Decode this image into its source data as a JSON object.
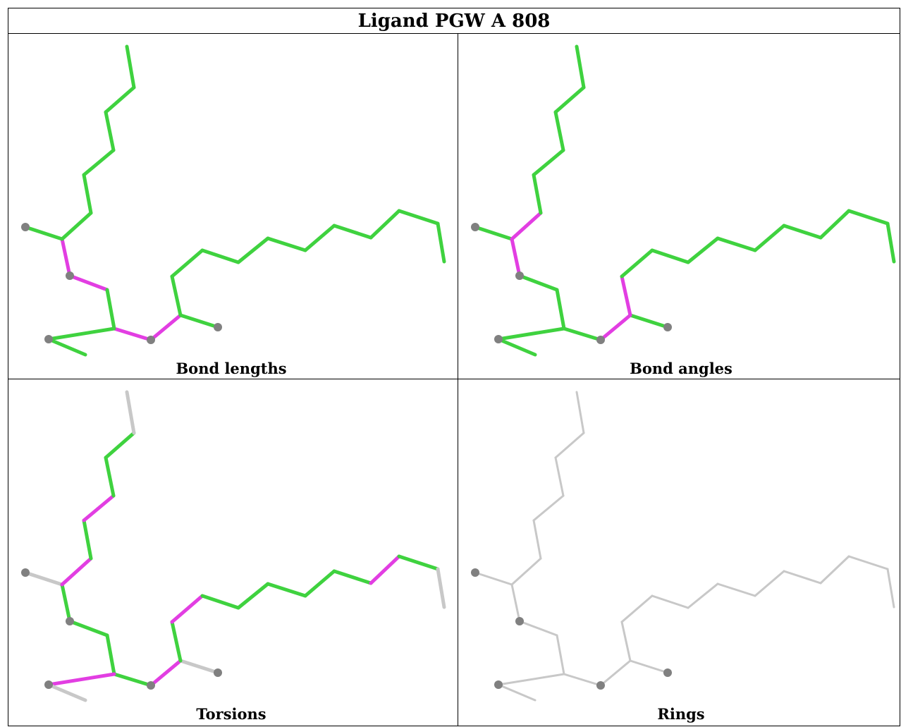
{
  "title": "Ligand PGW A 808",
  "colors": {
    "green": "#3fd23f",
    "magenta": "#e23ee2",
    "grey": "#c8c8c8",
    "atom": "#808080",
    "border": "#000000"
  },
  "panels": [
    {
      "caption": "Bond lengths",
      "default": "green",
      "magenta_bonds": [
        [
          1,
          2
        ],
        [
          2,
          3
        ],
        [
          4,
          5
        ],
        [
          5,
          6
        ]
      ],
      "grey_bonds": []
    },
    {
      "caption": "Bond angles",
      "default": "green",
      "magenta_bonds": [
        [
          1,
          2
        ],
        [
          7,
          8
        ],
        [
          6,
          18
        ],
        [
          5,
          6
        ]
      ],
      "grey_bonds": []
    },
    {
      "caption": "Torsions",
      "default": "green",
      "magenta_bonds": [
        [
          7,
          8
        ],
        [
          10,
          11
        ],
        [
          4,
          16
        ],
        [
          5,
          6
        ],
        [
          18,
          19
        ],
        [
          23,
          24
        ]
      ],
      "grey_bonds": [
        [
          0,
          7
        ],
        [
          4,
          17
        ],
        [
          6,
          35
        ],
        [
          13,
          14
        ],
        [
          27,
          28
        ]
      ]
    },
    {
      "caption": "Rings",
      "default": "grey",
      "magenta_bonds": [],
      "grey_bonds": []
    }
  ]
}
